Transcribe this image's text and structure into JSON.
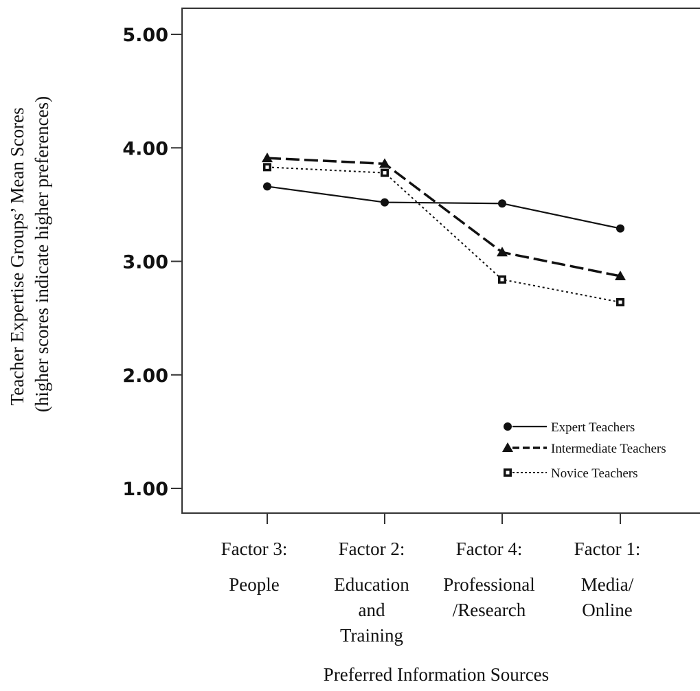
{
  "chart_data": {
    "type": "line",
    "xlabel": "Preferred Information Sources",
    "ylabel_lines": [
      "Teacher Expertise Groups’ Mean Scores",
      "(higher scores indicate higher preferences)"
    ],
    "ylim": [
      1.0,
      5.0
    ],
    "yticks": [
      {
        "value": 1.0,
        "label": "1.00"
      },
      {
        "value": 2.0,
        "label": "2.00"
      },
      {
        "value": 3.0,
        "label": "3.00"
      },
      {
        "value": 4.0,
        "label": "4.00"
      },
      {
        "value": 5.0,
        "label": "5.00"
      }
    ],
    "categories": [
      {
        "lines": [
          "Factor 3:",
          "People"
        ]
      },
      {
        "lines": [
          "Factor 2:",
          "Education",
          "and",
          "Training"
        ]
      },
      {
        "lines": [
          "Factor 4:",
          "Professional",
          "/Research"
        ]
      },
      {
        "lines": [
          "Factor 1:",
          "Media/",
          "Online"
        ]
      }
    ],
    "series": [
      {
        "name": "Expert Teachers",
        "marker": "circle",
        "line_style": "solid",
        "values": [
          3.66,
          3.52,
          3.51,
          3.29
        ]
      },
      {
        "name": "Intermediate Teachers",
        "marker": "triangle",
        "line_style": "dashed",
        "values": [
          3.91,
          3.86,
          3.08,
          2.87
        ]
      },
      {
        "name": "Novice Teachers",
        "marker": "square",
        "line_style": "dotted",
        "values": [
          3.83,
          3.78,
          2.84,
          2.64
        ]
      }
    ],
    "legend_position": "bottom-right",
    "grid": false,
    "color": "#111111"
  }
}
